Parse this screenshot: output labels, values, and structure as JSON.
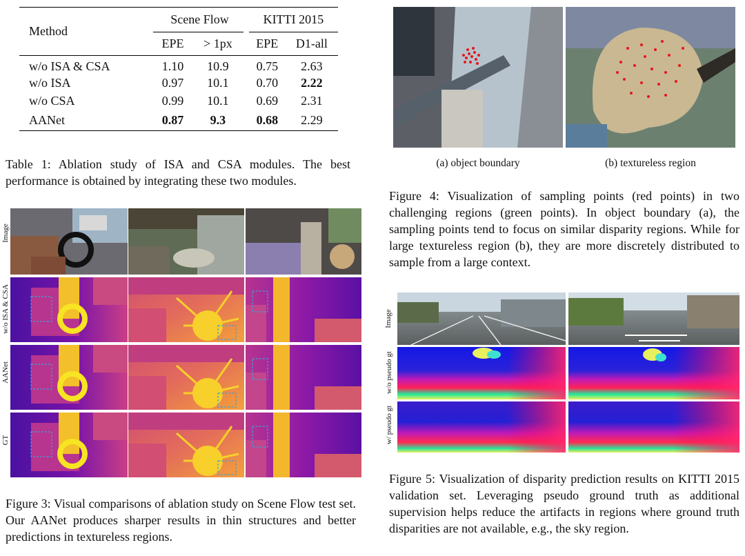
{
  "table1": {
    "header": {
      "method": "Method",
      "group1": "Scene Flow",
      "group2": "KITTI 2015",
      "cols": [
        "EPE",
        "> 1px",
        "EPE",
        "D1-all"
      ]
    },
    "rows": [
      {
        "method": "w/o ISA & CSA",
        "vals": [
          "1.10",
          "10.9",
          "0.75",
          "2.63"
        ]
      },
      {
        "method": "w/o ISA",
        "vals": [
          "0.97",
          "10.1",
          "0.70",
          "2.22"
        ]
      },
      {
        "method": "w/o CSA",
        "vals": [
          "0.99",
          "10.1",
          "0.69",
          "2.31"
        ]
      },
      {
        "method": "AANet",
        "vals": [
          "0.87",
          "9.3",
          "0.68",
          "2.29"
        ]
      }
    ],
    "caption": "Table 1: Ablation study of ISA and CSA modules. The best performance is obtained by integrating these two modules."
  },
  "figure3": {
    "row_labels": [
      "Image",
      "w/o ISA & CSA",
      "AANet",
      "GT"
    ],
    "caption": "Figure 3: Visual comparisons of ablation study on Scene Flow test set. Our AANet produces sharper results in thin structures and better predictions in textureless regions."
  },
  "figure4": {
    "sub_a": "(a) object boundary",
    "sub_b": "(b) textureless region",
    "caption": "Figure 4: Visualization of sampling points (red points) in two challenging regions (green points). In object boundary (a), the sampling points tend to focus on similar disparity regions. While for large textureless region (b), they are more discretely distributed to sample from a large context."
  },
  "figure5": {
    "row_labels": [
      "Image",
      "w/o pseudo gt",
      "w/ pseudo gt"
    ],
    "caption": "Figure 5: Visualization of disparity prediction results on KITTI 2015 validation set. Leveraging pseudo ground truth as additional supervision helps reduce the artifacts in regions where ground truth disparities are not available, e.g., the sky region."
  },
  "colors": {
    "plasma_dark": "#3b0f8c",
    "plasma_mid": "#c5407e",
    "plasma_bright": "#f6e620",
    "sample_red": "#e8141c"
  }
}
